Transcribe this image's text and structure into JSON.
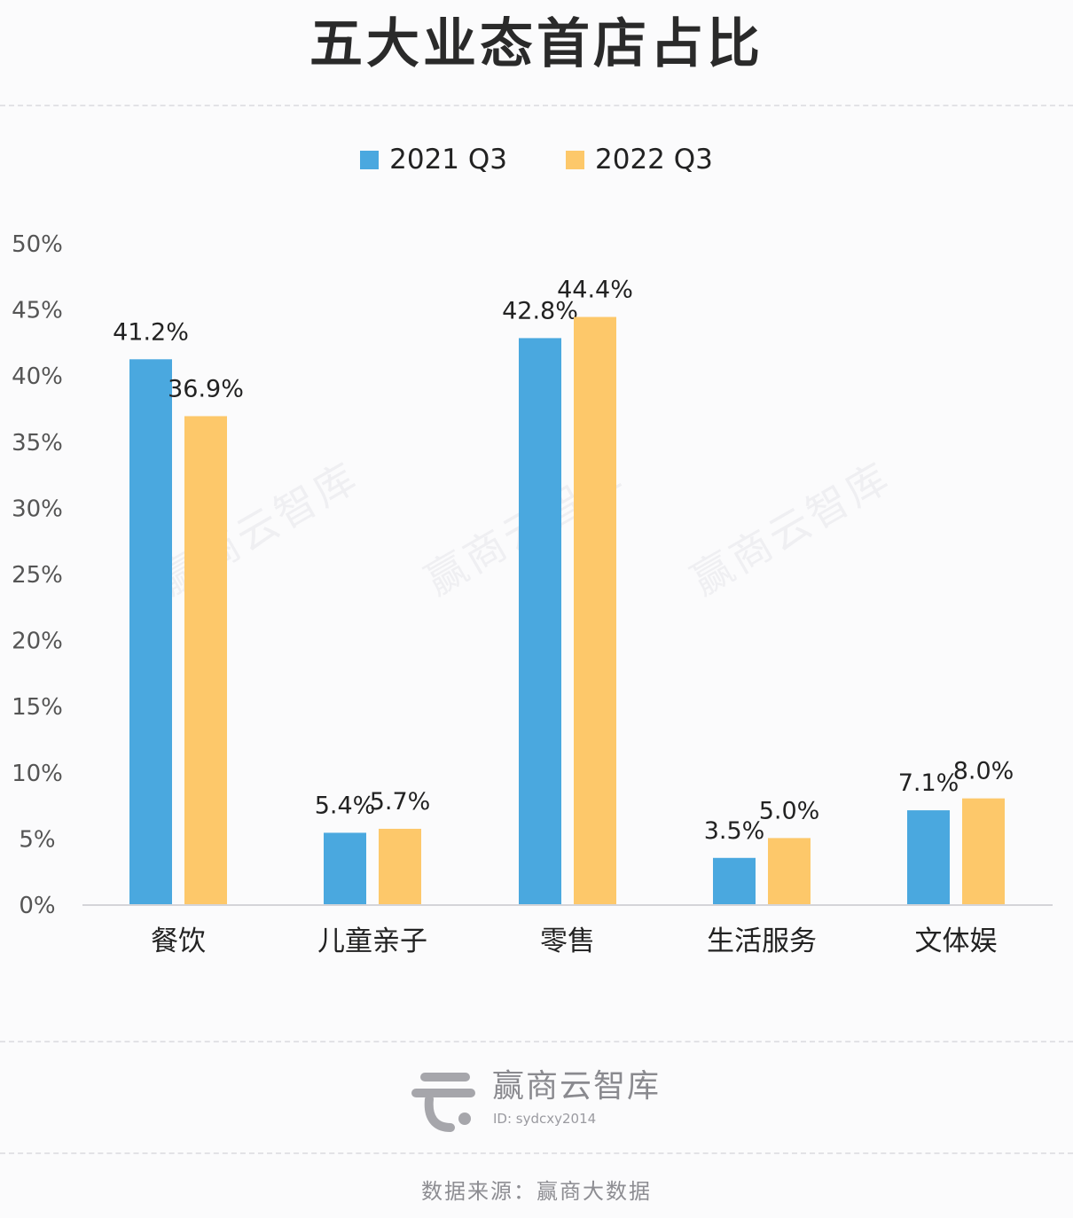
{
  "title": "五大业态首店占比",
  "legend": {
    "items": [
      {
        "label": "2021 Q3",
        "color": "#4aa8df"
      },
      {
        "label": "2022 Q3",
        "color": "#fdc86a"
      }
    ]
  },
  "chart_data": {
    "type": "bar",
    "title": "五大业态首店占比",
    "categories": [
      "餐饮",
      "儿童亲子",
      "零售",
      "生活服务",
      "文体娱"
    ],
    "series": [
      {
        "name": "2021 Q3",
        "values": [
          41.2,
          5.4,
          42.8,
          3.5,
          7.1
        ],
        "labels": [
          "41.2%",
          "5.4%",
          "42.8%",
          "3.5%",
          "7.1%"
        ],
        "color": "#4aa8df"
      },
      {
        "name": "2022 Q3",
        "values": [
          36.9,
          5.7,
          44.4,
          5.0,
          8.0
        ],
        "labels": [
          "36.9%",
          "5.7%",
          "44.4%",
          "5.0%",
          "8.0%"
        ],
        "color": "#fdc86a"
      }
    ],
    "ylim": [
      0,
      50
    ],
    "yticks": [
      "0%",
      "5%",
      "10%",
      "15%",
      "20%",
      "25%",
      "30%",
      "35%",
      "40%",
      "45%",
      "50%"
    ],
    "xlabel": "",
    "ylabel": "",
    "grid": false,
    "legend_position": "top"
  },
  "watermark": "赢商云智库",
  "brand": {
    "name": "赢商云智库",
    "id": "ID: sydcxy2014"
  },
  "source": "数据来源：赢商大数据"
}
